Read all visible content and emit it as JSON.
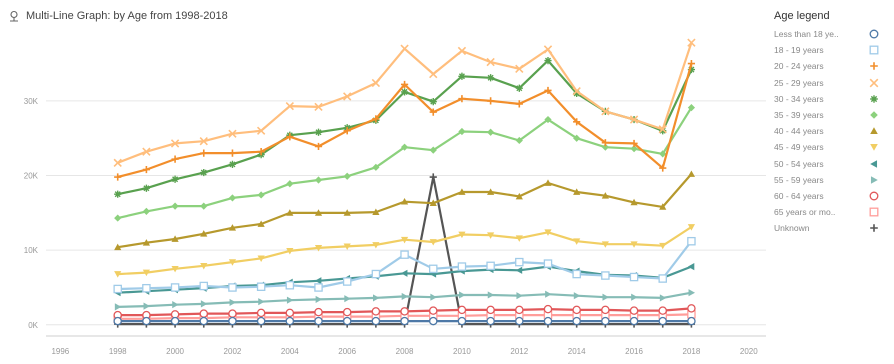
{
  "header": {
    "title": "Multi-Line Graph:  by Age from 1998-2018",
    "icon": "chart-pin-icon"
  },
  "legend": {
    "title": "Age legend"
  },
  "chart_data": {
    "type": "line",
    "title": "Multi-Line Graph:  by Age from 1998-2018",
    "xlabel": "",
    "ylabel": "",
    "xlim": [
      1995.5,
      2020.6
    ],
    "ylim": [
      -1500,
      39500
    ],
    "x_ticks": [
      1996,
      1998,
      2000,
      2002,
      2004,
      2006,
      2008,
      2010,
      2012,
      2014,
      2016,
      2018,
      2020
    ],
    "y_ticks": [
      {
        "value": 0,
        "label": "0K"
      },
      {
        "value": 10000,
        "label": "10K"
      },
      {
        "value": 20000,
        "label": "20K"
      },
      {
        "value": 30000,
        "label": "30K"
      }
    ],
    "grid": true,
    "legend_position": "right",
    "x": [
      1998,
      1999,
      2000,
      2001,
      2002,
      2003,
      2004,
      2005,
      2006,
      2007,
      2008,
      2009,
      2010,
      2011,
      2012,
      2013,
      2014,
      2015,
      2016,
      2017,
      2018
    ],
    "series": [
      {
        "name": "Less than 18 ye..",
        "color": "#4e79a7",
        "marker": "circle",
        "values": [
          500,
          500,
          500,
          500,
          500,
          500,
          500,
          500,
          500,
          500,
          500,
          500,
          500,
          500,
          500,
          500,
          500,
          500,
          500,
          500,
          500
        ]
      },
      {
        "name": "18 - 19 years",
        "color": "#a0cbe8",
        "marker": "square",
        "values": [
          4800,
          4900,
          5000,
          5200,
          5000,
          5100,
          5300,
          5000,
          5800,
          6800,
          9400,
          7500,
          7800,
          7900,
          8400,
          8200,
          6800,
          6600,
          6400,
          6200,
          11200
        ]
      },
      {
        "name": "20 - 24 years",
        "color": "#f28e2b",
        "marker": "plus",
        "values": [
          19800,
          20800,
          22200,
          23000,
          23000,
          23200,
          25200,
          23900,
          26000,
          27600,
          32200,
          28500,
          30300,
          30000,
          29600,
          31400,
          27200,
          24400,
          24300,
          21000,
          35000
        ]
      },
      {
        "name": "25 - 29 years",
        "color": "#ffbe7d",
        "marker": "x",
        "values": [
          21700,
          23200,
          24300,
          24600,
          25600,
          26000,
          29300,
          29200,
          30600,
          32400,
          37000,
          33600,
          36700,
          35200,
          34300,
          36900,
          31300,
          28600,
          27500,
          26200,
          37800
        ]
      },
      {
        "name": "30 - 34 years",
        "color": "#59a14f",
        "marker": "asterisk",
        "values": [
          17500,
          18300,
          19500,
          20400,
          21500,
          22800,
          25400,
          25800,
          26400,
          27400,
          31200,
          29900,
          33300,
          33100,
          31700,
          35400,
          31000,
          28600,
          27500,
          26000,
          34200
        ]
      },
      {
        "name": "35 - 39 years",
        "color": "#8cd17d",
        "marker": "diamond",
        "values": [
          14300,
          15200,
          15900,
          15900,
          17000,
          17400,
          18900,
          19400,
          19900,
          21100,
          23800,
          23400,
          25900,
          25800,
          24700,
          27500,
          25000,
          23800,
          23600,
          22900,
          29100
        ]
      },
      {
        "name": "40 - 44 years",
        "color": "#b6992d",
        "marker": "triangle-up",
        "values": [
          10400,
          11000,
          11500,
          12200,
          13000,
          13500,
          15000,
          15000,
          15000,
          15100,
          16500,
          16300,
          17800,
          17800,
          17200,
          19000,
          17800,
          17300,
          16400,
          15800,
          20200
        ]
      },
      {
        "name": "45 - 49 years",
        "color": "#f1ce63",
        "marker": "triangle-down",
        "values": [
          6800,
          7000,
          7500,
          7900,
          8400,
          8900,
          9900,
          10300,
          10500,
          10700,
          11400,
          11100,
          12100,
          12000,
          11600,
          12400,
          11200,
          10800,
          10800,
          10600,
          13100
        ]
      },
      {
        "name": "50 - 54 years",
        "color": "#499894",
        "marker": "triangle-left",
        "values": [
          4300,
          4500,
          4700,
          4900,
          5200,
          5300,
          5700,
          5900,
          6200,
          6500,
          6900,
          6800,
          7200,
          7400,
          7300,
          7800,
          7200,
          6700,
          6600,
          6300,
          7800
        ]
      },
      {
        "name": "55 - 59 years",
        "color": "#86bcb6",
        "marker": "triangle-right",
        "values": [
          2400,
          2500,
          2700,
          2800,
          3000,
          3100,
          3300,
          3400,
          3500,
          3600,
          3800,
          3700,
          4000,
          4000,
          3900,
          4100,
          3900,
          3700,
          3700,
          3600,
          4300
        ]
      },
      {
        "name": "60 - 64 years",
        "color": "#e15759",
        "marker": "circle",
        "values": [
          1300,
          1300,
          1400,
          1500,
          1500,
          1600,
          1600,
          1700,
          1700,
          1800,
          1800,
          1900,
          2000,
          2000,
          2000,
          2100,
          2000,
          2000,
          1900,
          1900,
          2200
        ]
      },
      {
        "name": "65 years or mo..",
        "color": "#ff9d9a",
        "marker": "square",
        "values": [
          800,
          800,
          900,
          900,
          1000,
          1000,
          1000,
          1100,
          1100,
          1100,
          1200,
          1200,
          1200,
          1300,
          1300,
          1300,
          1300,
          1300,
          1300,
          1300,
          1400
        ]
      },
      {
        "name": "Unknown",
        "color": "#555555",
        "marker": "plus",
        "values": [
          100,
          100,
          100,
          100,
          100,
          100,
          100,
          100,
          100,
          100,
          100,
          19800,
          100,
          100,
          100,
          100,
          100,
          100,
          100,
          100,
          100
        ]
      }
    ]
  }
}
